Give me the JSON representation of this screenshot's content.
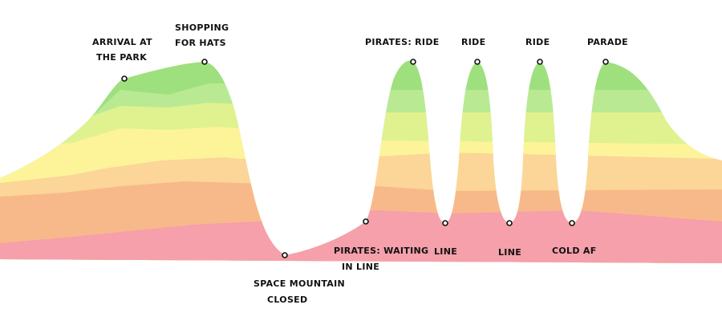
{
  "colors": {
    "band1": "#f5a0ab",
    "band2": "#f8b98a",
    "band3": "#fcd598",
    "band4": "#fdf49a",
    "band5": "#dff28f",
    "band6": "#b9ea93",
    "band7": "#9fe07e",
    "background": "#ffffff",
    "marker": "#111111"
  },
  "labels": {
    "arrival": [
      "ARRIVAL AT",
      "THE PARK"
    ],
    "shopping": [
      "SHOPPING",
      "FOR HATS"
    ],
    "space_mountain": [
      "SPACE MOUNTAIN",
      "CLOSED"
    ],
    "pirates_waiting": [
      "PIRATES: WAITING",
      "IN LINE"
    ],
    "pirates_ride": "PIRATES: RIDE",
    "line1": "LINE",
    "ride2": "RIDE",
    "line2": "LINE",
    "ride3": "RIDE",
    "cold": "COLD AF",
    "parade": "PARADE"
  }
}
